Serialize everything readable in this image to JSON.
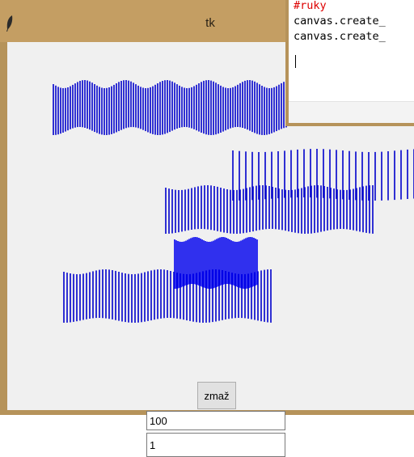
{
  "window": {
    "title": "tk",
    "icon": "feather-icon"
  },
  "controls": {
    "delete_label": "zmaž",
    "entry1_value": "100",
    "entry2_value": "1"
  },
  "editor": {
    "lines": [
      "#ruky",
      "canvas.create_",
      "canvas.create_"
    ]
  },
  "colors": {
    "line_blue": "#0000cc",
    "line_blue_dark": "#0000ee",
    "titlebar": "#c49e63",
    "frame": "#b6935a",
    "client_bg": "#f0f0f0",
    "comment_red": "#dd0000"
  }
}
